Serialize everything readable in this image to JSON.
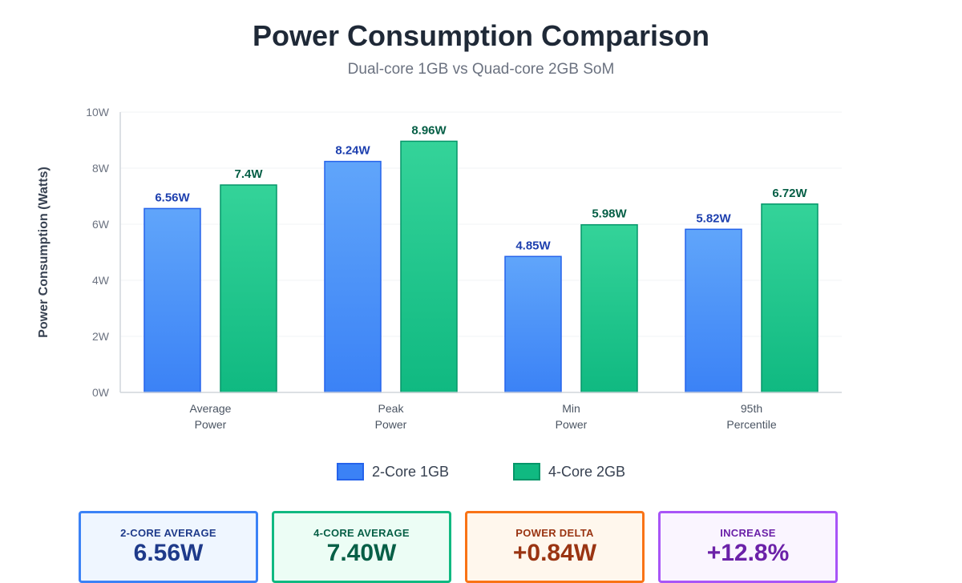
{
  "header": {
    "title": "Power Consumption Comparison",
    "subtitle": "Dual-core 1GB vs Quad-core 2GB SoM"
  },
  "chart_data": {
    "type": "bar",
    "categories": [
      [
        "Average",
        "Power"
      ],
      [
        "Peak",
        "Power"
      ],
      [
        "Min",
        "Power"
      ],
      [
        "95th",
        "Percentile"
      ]
    ],
    "series": [
      {
        "name": "2-Core 1GB",
        "values": [
          6.56,
          8.24,
          4.85,
          5.82
        ],
        "labels": [
          "6.56W",
          "8.24W",
          "4.85W",
          "5.82W"
        ],
        "color_top": "#60a5fa",
        "color_bottom": "#3b82f6",
        "stroke": "#2563eb",
        "label_color": "#1e40af"
      },
      {
        "name": "4-Core 2GB",
        "values": [
          7.4,
          8.96,
          5.98,
          6.72
        ],
        "labels": [
          "7.4W",
          "8.96W",
          "5.98W",
          "6.72W"
        ],
        "color_top": "#34d399",
        "color_bottom": "#10b981",
        "stroke": "#059669",
        "label_color": "#065f46"
      }
    ],
    "ylabel": "Power Consumption (Watts)",
    "ylim": [
      0,
      10
    ],
    "yticks": [
      0,
      2,
      4,
      6,
      8,
      10
    ],
    "ytick_labels": [
      "0W",
      "2W",
      "4W",
      "6W",
      "8W",
      "10W"
    ],
    "grid": true,
    "legend_position": "bottom-center"
  },
  "legend": [
    {
      "label": "2-Core 1GB",
      "color": "#3b82f6",
      "border": "#2563eb"
    },
    {
      "label": "4-Core 2GB",
      "color": "#10b981",
      "border": "#059669"
    }
  ],
  "cards": [
    {
      "label": "2-CORE AVERAGE",
      "value": "6.56W",
      "border": "#3b82f6",
      "bg": "#eff6ff",
      "label_color": "#1e3a8a",
      "value_color": "#1e3a8a"
    },
    {
      "label": "4-CORE AVERAGE",
      "value": "7.40W",
      "border": "#10b981",
      "bg": "#ecfdf5",
      "label_color": "#065f46",
      "value_color": "#065f46"
    },
    {
      "label": "POWER DELTA",
      "value": "+0.84W",
      "border": "#f97316",
      "bg": "#fff7ed",
      "label_color": "#9a3412",
      "value_color": "#9a3412"
    },
    {
      "label": "INCREASE",
      "value": "+12.8%",
      "border": "#a855f7",
      "bg": "#faf5ff",
      "label_color": "#6b21a8",
      "value_color": "#6b21a8"
    }
  ]
}
